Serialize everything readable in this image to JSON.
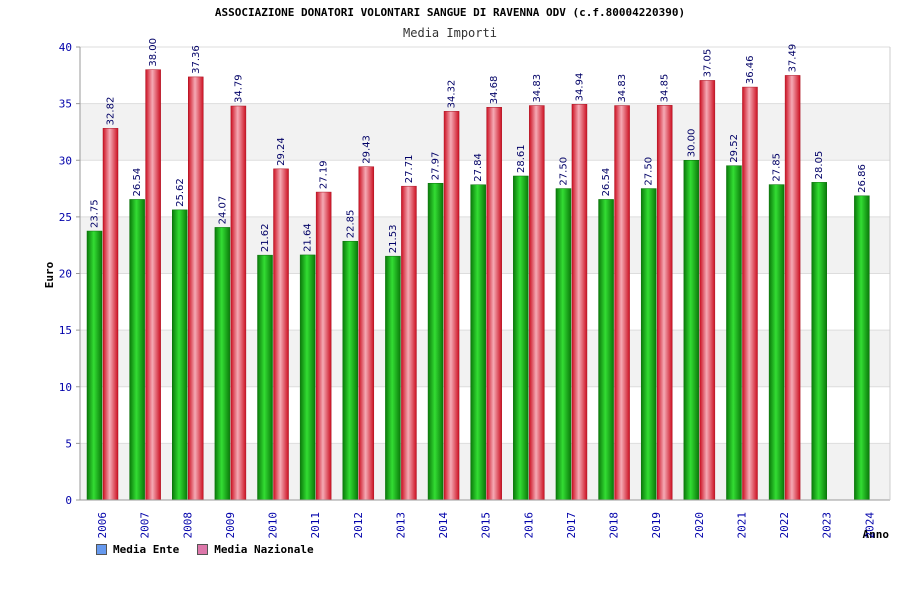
{
  "chart_data": {
    "type": "bar",
    "title": "ASSOCIAZIONE DONATORI VOLONTARI SANGUE DI RAVENNA ODV (c.f.80004220390)",
    "subtitle": "Media Importi",
    "ylabel": "Euro",
    "xlabel": "Anno",
    "ylim": [
      0,
      40
    ],
    "yticks": [
      0,
      5,
      10,
      15,
      20,
      25,
      30,
      35,
      40
    ],
    "categories": [
      "2006",
      "2007",
      "2008",
      "2009",
      "2010",
      "2011",
      "2012",
      "2013",
      "2014",
      "2015",
      "2016",
      "2017",
      "2018",
      "2019",
      "2020",
      "2021",
      "2022",
      "2023",
      "2024"
    ],
    "series": [
      {
        "name": "Media Ente",
        "color": "#22bb22",
        "legend_color": "#6699ee",
        "values": [
          23.75,
          26.54,
          25.62,
          24.07,
          21.62,
          21.64,
          22.85,
          21.53,
          27.97,
          27.84,
          28.61,
          27.5,
          26.54,
          27.5,
          30.0,
          29.52,
          27.85,
          28.05,
          26.86
        ],
        "labels": [
          "23.75",
          "26.54",
          "25.62",
          "24.07",
          "21.62",
          "21.64",
          "22.85",
          "21.53",
          "27.97",
          "27.84",
          "28.61",
          "27.50",
          "26.54",
          "27.50",
          "30.00",
          "29.52",
          "27.85",
          "28.05",
          "26.86"
        ]
      },
      {
        "name": "Media Nazionale",
        "color": "#ee3344",
        "legend_color": "#dd77aa",
        "values": [
          32.82,
          38.0,
          37.36,
          34.79,
          29.24,
          27.19,
          29.43,
          27.71,
          34.32,
          34.68,
          34.83,
          34.94,
          34.83,
          34.85,
          37.05,
          36.46,
          37.49,
          null,
          null
        ],
        "labels": [
          "32.82",
          "38.00",
          "37.36",
          "34.79",
          "29.24",
          "27.19",
          "29.43",
          "27.71",
          "34.32",
          "34.68",
          "34.83",
          "34.94",
          "34.83",
          "34.85",
          "37.05",
          "36.46",
          "37.49",
          null,
          null
        ]
      }
    ]
  }
}
